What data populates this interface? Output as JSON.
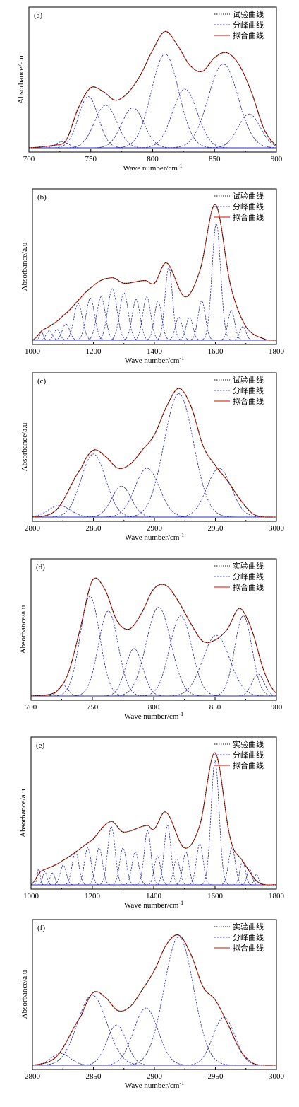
{
  "legend_labels": {
    "exp_a": "试验曲线",
    "exp_d": "实验曲线",
    "comp": "分峰曲线",
    "fit": "拟合曲线"
  },
  "ylabel": "Absorbance/a.u",
  "xlabel": "Wave number/cm",
  "xlabel_sup": "-1",
  "colors": {
    "fit": "#e03a2a",
    "components": "#2a2aa8",
    "experimental": "#111111",
    "baseline": "#2c2cc8"
  },
  "chart_data": [
    {
      "type": "line",
      "label": "(a)",
      "legend": "试验曲线",
      "xlim": [
        700,
        900
      ],
      "xticks": [
        700,
        750,
        800,
        850,
        900
      ],
      "xlabel": "Wave number/cm-1",
      "ylabel": "Absorbance/a.u",
      "ylim": [
        0,
        1.0
      ],
      "series": [
        {
          "name": "试验曲线",
          "x": [
            700,
            720,
            730,
            740,
            750,
            760,
            770,
            780,
            790,
            800,
            810,
            820,
            830,
            840,
            850,
            860,
            870,
            880,
            890,
            900
          ],
          "values": [
            0.0,
            0.02,
            0.06,
            0.32,
            0.48,
            0.45,
            0.38,
            0.44,
            0.58,
            0.78,
            0.93,
            0.82,
            0.66,
            0.61,
            0.72,
            0.76,
            0.66,
            0.44,
            0.15,
            0.02
          ]
        },
        {
          "name": "分峰曲线",
          "peaks": [
            [
              727,
              0.05,
              5
            ],
            [
              748,
              0.41,
              8
            ],
            [
              762,
              0.34,
              9
            ],
            [
              784,
              0.32,
              9
            ],
            [
              810,
              0.75,
              11
            ],
            [
              826,
              0.47,
              10
            ],
            [
              857,
              0.67,
              12
            ],
            [
              878,
              0.27,
              9
            ]
          ]
        },
        {
          "name": "拟合曲线",
          "x": [
            700,
            720,
            730,
            740,
            750,
            760,
            770,
            780,
            790,
            800,
            810,
            820,
            830,
            840,
            850,
            860,
            870,
            880,
            890,
            900
          ],
          "values": [
            0.0,
            0.02,
            0.06,
            0.32,
            0.48,
            0.45,
            0.38,
            0.44,
            0.58,
            0.78,
            0.93,
            0.82,
            0.66,
            0.61,
            0.72,
            0.76,
            0.66,
            0.44,
            0.15,
            0.02
          ]
        }
      ]
    },
    {
      "type": "line",
      "label": "(b)",
      "legend": "试验曲线",
      "xlim": [
        1000,
        1800
      ],
      "xticks": [
        1000,
        1200,
        1400,
        1600,
        1800
      ],
      "xlabel": "Wave number/cm-1",
      "ylabel": "Absorbance/a.u",
      "ylim": [
        0,
        1.0
      ],
      "series": [
        {
          "name": "试验曲线",
          "x": [
            1000,
            1030,
            1100,
            1200,
            1260,
            1300,
            1370,
            1400,
            1440,
            1500,
            1550,
            1600,
            1650,
            1700,
            1760,
            1800
          ],
          "values": [
            0.0,
            0.07,
            0.18,
            0.4,
            0.46,
            0.42,
            0.44,
            0.42,
            0.57,
            0.32,
            0.52,
            1.0,
            0.4,
            0.1,
            0.01,
            0.0
          ]
        },
        {
          "name": "分峰曲线",
          "peaks": [
            [
              1030,
              0.06,
              6
            ],
            [
              1055,
              0.07,
              10
            ],
            [
              1080,
              0.08,
              10
            ],
            [
              1110,
              0.12,
              12
            ],
            [
              1150,
              0.27,
              14
            ],
            [
              1190,
              0.31,
              14
            ],
            [
              1225,
              0.32,
              14
            ],
            [
              1262,
              0.38,
              15
            ],
            [
              1300,
              0.35,
              14
            ],
            [
              1340,
              0.3,
              13
            ],
            [
              1375,
              0.32,
              13
            ],
            [
              1412,
              0.29,
              12
            ],
            [
              1447,
              0.54,
              12
            ],
            [
              1480,
              0.17,
              11
            ],
            [
              1515,
              0.17,
              11
            ],
            [
              1555,
              0.29,
              12
            ],
            [
              1603,
              0.86,
              14
            ],
            [
              1652,
              0.22,
              11
            ],
            [
              1690,
              0.1,
              10
            ]
          ]
        },
        {
          "name": "拟合曲线",
          "x": [
            1000,
            1030,
            1100,
            1200,
            1260,
            1300,
            1370,
            1400,
            1440,
            1500,
            1550,
            1600,
            1650,
            1700,
            1760,
            1800
          ],
          "values": [
            0.0,
            0.07,
            0.18,
            0.4,
            0.46,
            0.42,
            0.44,
            0.42,
            0.57,
            0.32,
            0.52,
            1.0,
            0.4,
            0.1,
            0.01,
            0.0
          ]
        }
      ]
    },
    {
      "type": "line",
      "label": "(c)",
      "legend": "试验曲线",
      "xlim": [
        2800,
        3000
      ],
      "xticks": [
        2800,
        2850,
        2900,
        2950,
        3000
      ],
      "xlabel": "Wave number/cm-1",
      "ylabel": "Absorbance/a.u",
      "ylim": [
        0,
        1.0
      ],
      "series": [
        {
          "name": "试验曲线",
          "x": [
            2800,
            2820,
            2840,
            2850,
            2860,
            2870,
            2880,
            2890,
            2900,
            2910,
            2920,
            2930,
            2940,
            2950,
            2960,
            2970,
            2980,
            2990,
            3000
          ],
          "values": [
            0.0,
            0.06,
            0.38,
            0.52,
            0.47,
            0.38,
            0.41,
            0.52,
            0.64,
            0.86,
            1.0,
            0.86,
            0.55,
            0.4,
            0.28,
            0.14,
            0.03,
            0.0,
            0.0
          ]
        },
        {
          "name": "分峰曲线",
          "peaks": [
            [
              2822,
              0.09,
              9
            ],
            [
              2850,
              0.49,
              10
            ],
            [
              2873,
              0.24,
              8
            ],
            [
              2894,
              0.38,
              10
            ],
            [
              2920,
              0.96,
              12
            ],
            [
              2953,
              0.38,
              10
            ]
          ]
        },
        {
          "name": "拟合曲线",
          "x": [
            2800,
            2820,
            2840,
            2850,
            2860,
            2870,
            2880,
            2890,
            2900,
            2910,
            2920,
            2930,
            2940,
            2950,
            2960,
            2970,
            2980,
            2990,
            3000
          ],
          "values": [
            0.0,
            0.06,
            0.38,
            0.52,
            0.47,
            0.38,
            0.41,
            0.52,
            0.64,
            0.86,
            1.0,
            0.86,
            0.55,
            0.4,
            0.28,
            0.14,
            0.03,
            0.0,
            0.0
          ]
        }
      ]
    },
    {
      "type": "line",
      "label": "(d)",
      "legend": "实验曲线",
      "xlim": [
        700,
        900
      ],
      "xticks": [
        700,
        750,
        800,
        850,
        900
      ],
      "xlabel": "Wave number/cm-1",
      "ylabel": "Absorbance/a.u",
      "ylim": [
        0,
        1.0
      ],
      "series": [
        {
          "name": "实验曲线",
          "x": [
            700,
            720,
            730,
            740,
            750,
            760,
            770,
            780,
            790,
            800,
            810,
            820,
            830,
            840,
            850,
            860,
            870,
            880,
            890,
            900
          ],
          "values": [
            0.0,
            0.03,
            0.18,
            0.55,
            0.95,
            0.88,
            0.62,
            0.55,
            0.68,
            0.88,
            0.91,
            0.78,
            0.6,
            0.45,
            0.46,
            0.55,
            0.72,
            0.54,
            0.2,
            0.02
          ]
        },
        {
          "name": "分峰曲线",
          "peaks": [
            [
              726,
              0.09,
              4
            ],
            [
              748,
              0.82,
              8
            ],
            [
              763,
              0.7,
              8
            ],
            [
              784,
              0.39,
              7
            ],
            [
              804,
              0.73,
              10
            ],
            [
              822,
              0.66,
              9
            ],
            [
              851,
              0.5,
              11
            ],
            [
              873,
              0.66,
              7
            ],
            [
              885,
              0.18,
              5
            ]
          ]
        },
        {
          "name": "拟合曲线",
          "x": [
            700,
            720,
            730,
            740,
            750,
            760,
            770,
            780,
            790,
            800,
            810,
            820,
            830,
            840,
            850,
            860,
            870,
            880,
            890,
            900
          ],
          "values": [
            0.0,
            0.03,
            0.18,
            0.55,
            0.95,
            0.88,
            0.62,
            0.55,
            0.68,
            0.88,
            0.91,
            0.78,
            0.6,
            0.45,
            0.46,
            0.55,
            0.72,
            0.54,
            0.2,
            0.02
          ]
        }
      ]
    },
    {
      "type": "line",
      "label": "(e)",
      "legend": "实验曲线",
      "xlim": [
        1000,
        1800
      ],
      "xticks": [
        1000,
        1200,
        1400,
        1600,
        1800
      ],
      "xlabel": "Wave number/cm-1",
      "ylabel": "Absorbance/a.u",
      "ylim": [
        0,
        1.0
      ],
      "series": [
        {
          "name": "实验曲线",
          "x": [
            1000,
            1030,
            1100,
            1200,
            1260,
            1300,
            1380,
            1400,
            1440,
            1500,
            1550,
            1600,
            1650,
            1690,
            1740,
            1800
          ],
          "values": [
            0.0,
            0.1,
            0.18,
            0.34,
            0.48,
            0.4,
            0.45,
            0.42,
            0.55,
            0.28,
            0.45,
            1.0,
            0.35,
            0.18,
            0.02,
            0.0
          ]
        },
        {
          "name": "分峰曲线",
          "peaks": [
            [
              1025,
              0.12,
              5
            ],
            [
              1045,
              0.1,
              7
            ],
            [
              1070,
              0.09,
              8
            ],
            [
              1105,
              0.15,
              10
            ],
            [
              1145,
              0.25,
              11
            ],
            [
              1185,
              0.28,
              11
            ],
            [
              1222,
              0.28,
              11
            ],
            [
              1262,
              0.44,
              12
            ],
            [
              1300,
              0.28,
              11
            ],
            [
              1340,
              0.25,
              11
            ],
            [
              1380,
              0.41,
              11
            ],
            [
              1412,
              0.22,
              10
            ],
            [
              1445,
              0.45,
              11
            ],
            [
              1475,
              0.2,
              10
            ],
            [
              1505,
              0.25,
              10
            ],
            [
              1550,
              0.31,
              11
            ],
            [
              1600,
              0.94,
              13
            ],
            [
              1655,
              0.28,
              11
            ],
            [
              1690,
              0.18,
              9
            ],
            [
              1712,
              0.12,
              8
            ],
            [
              1735,
              0.08,
              7
            ]
          ]
        },
        {
          "name": "拟合曲线",
          "x": [
            1000,
            1030,
            1100,
            1200,
            1260,
            1300,
            1380,
            1400,
            1440,
            1500,
            1550,
            1600,
            1650,
            1690,
            1740,
            1800
          ],
          "values": [
            0.0,
            0.1,
            0.18,
            0.34,
            0.48,
            0.4,
            0.45,
            0.42,
            0.55,
            0.28,
            0.45,
            1.0,
            0.35,
            0.18,
            0.02,
            0.0
          ]
        }
      ]
    },
    {
      "type": "line",
      "label": "(f)",
      "legend": "实验曲线",
      "xlim": [
        2800,
        3000
      ],
      "xticks": [
        2800,
        2850,
        2900,
        2950,
        3000
      ],
      "xlabel": "Wave number/cm-1",
      "ylabel": "Absorbance/a.u",
      "ylim": [
        0,
        1.0
      ],
      "series": [
        {
          "name": "实验曲线",
          "x": [
            2800,
            2820,
            2840,
            2850,
            2860,
            2870,
            2880,
            2890,
            2900,
            2910,
            2920,
            2930,
            2940,
            2950,
            2960,
            2970,
            2980,
            2990,
            3000
          ],
          "values": [
            0.0,
            0.07,
            0.38,
            0.56,
            0.52,
            0.42,
            0.45,
            0.58,
            0.73,
            0.93,
            1.0,
            0.85,
            0.6,
            0.5,
            0.32,
            0.12,
            0.02,
            0.0,
            0.0
          ]
        },
        {
          "name": "分峰曲线",
          "peaks": [
            [
              2823,
              0.09,
              8
            ],
            [
              2849,
              0.54,
              12
            ],
            [
              2869,
              0.31,
              8
            ],
            [
              2893,
              0.44,
              10
            ],
            [
              2920,
              0.99,
              12
            ],
            [
              2957,
              0.37,
              9
            ]
          ]
        },
        {
          "name": "拟合曲线",
          "x": [
            2800,
            2820,
            2840,
            2850,
            2860,
            2870,
            2880,
            2890,
            2900,
            2910,
            2920,
            2930,
            2940,
            2950,
            2960,
            2970,
            2980,
            2990,
            3000
          ],
          "values": [
            0.0,
            0.07,
            0.38,
            0.56,
            0.52,
            0.42,
            0.45,
            0.58,
            0.73,
            0.93,
            1.0,
            0.85,
            0.6,
            0.5,
            0.32,
            0.12,
            0.02,
            0.0,
            0.0
          ]
        }
      ]
    }
  ]
}
